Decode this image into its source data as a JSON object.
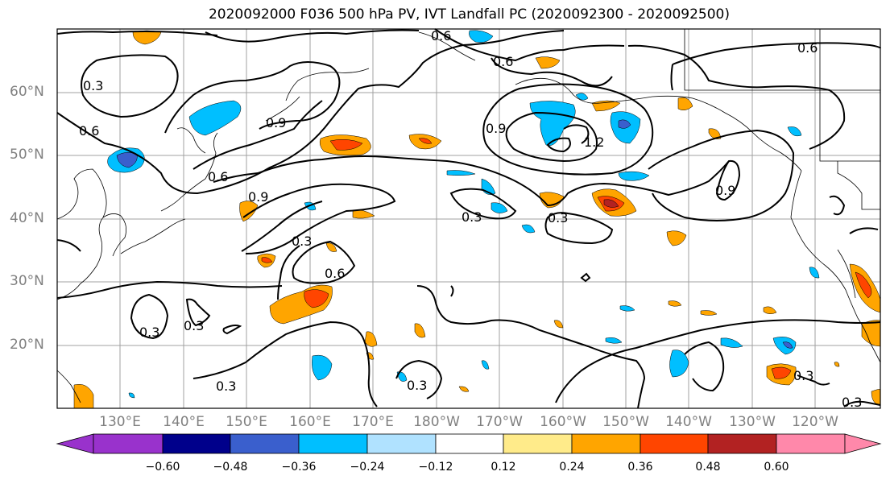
{
  "title": "2020092000 F036 500 hPa PV, IVT Landfall PC (2020092300 - 2020092500)",
  "lat_labels": [
    "60°N",
    "50°N",
    "40°N",
    "30°N",
    "20°N"
  ],
  "lon_labels": [
    "130°E",
    "140°E",
    "150°E",
    "160°E",
    "170°E",
    "180°W",
    "170°W",
    "160°W",
    "150°W",
    "140°W",
    "130°W",
    "120°W"
  ],
  "contour_labels": [
    "0.3",
    "0.6",
    "0.9",
    "0.6",
    "0.6",
    "0.9",
    "0.6",
    "0.3",
    "0.6",
    "0.3",
    "0.3",
    "0.3",
    "0.9",
    "1.2",
    "0.3",
    "0.9",
    "0.6",
    "0.3",
    "0.3",
    "0.3",
    "0.3"
  ],
  "colorbar": {
    "tick_labels": [
      "−0.60",
      "−0.48",
      "−0.36",
      "−0.24",
      "−0.12",
      "0.12",
      "0.24",
      "0.36",
      "0.48",
      "0.60"
    ],
    "colors": [
      "#9932cc",
      "#00008b",
      "#3a5fcd",
      "#00bfff",
      "#b0e2ff",
      "#ffffff",
      "#ffeb8a",
      "#ffa500",
      "#ff4500",
      "#b22222",
      "#ff88aa"
    ]
  },
  "colors": {
    "contour": "#000000",
    "grid": "#a0a0a0",
    "coast": "#000000",
    "tick_label": "#808080"
  }
}
